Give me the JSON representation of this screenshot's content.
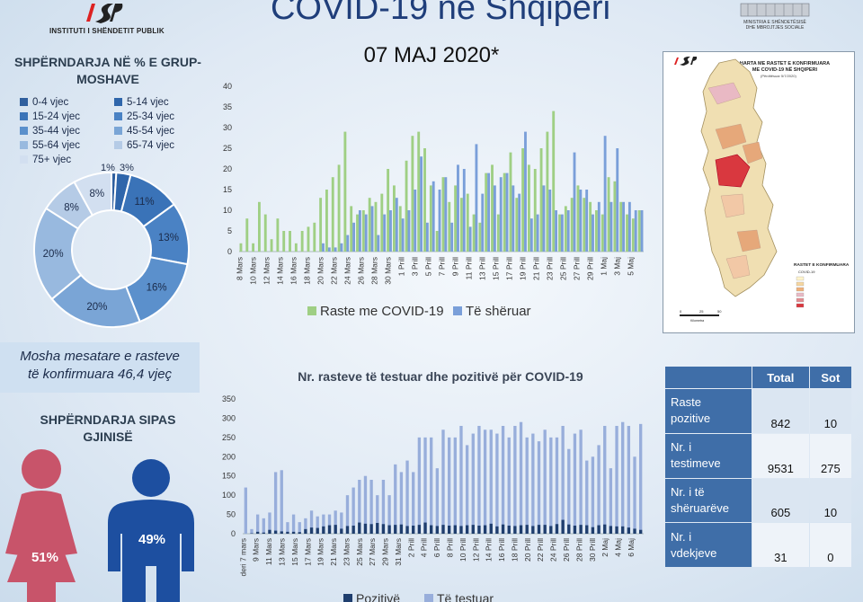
{
  "header": {
    "logo_text": "INSTITUTI I SHËNDETIT PUBLIK",
    "title": "COVID-19 në Shqipëri",
    "date": "07 MAJ 2020*",
    "ministry_line1": "MINISTRIA E SHËNDETËSISË",
    "ministry_line2": "DHE MBROJTJES SOCIALE"
  },
  "age": {
    "title": "SHPËRNDARJA NË % E GRUP-MOSHAVE",
    "legend": [
      {
        "label": "0-4 vjec",
        "color": "#2f5f9e"
      },
      {
        "label": "5-14 vjec",
        "color": "#2f66ab"
      },
      {
        "label": "15-24 vjec",
        "color": "#3a73b8"
      },
      {
        "label": "25-34 vjec",
        "color": "#4a82c4"
      },
      {
        "label": "35-44 vjec",
        "color": "#5b90cc"
      },
      {
        "label": "45-54 vjec",
        "color": "#7aa5d6"
      },
      {
        "label": "55-64 vjec",
        "color": "#98b9df"
      },
      {
        "label": "65-74 vjec",
        "color": "#b5cbe6"
      },
      {
        "label": "75+ vjec",
        "color": "#d2dff0"
      }
    ],
    "mean_line1": "Mosha mesatare e rasteve",
    "mean_line2": "të konfirmuara 46,4 vjeç"
  },
  "gender": {
    "title": "SHPËRNDARJA SIPAS GJINISË",
    "female_pct": "51%",
    "male_pct": "49%",
    "female_color": "#c8546a",
    "male_color": "#1d4fa0"
  },
  "table": {
    "headers": [
      "",
      "Total",
      "Sot"
    ],
    "rows": [
      {
        "label1": "Raste",
        "label2": "pozitive",
        "total": "842",
        "sot": "10"
      },
      {
        "label1": "Nr. i",
        "label2": "testimeve",
        "total": "9531",
        "sot": "275"
      },
      {
        "label1": "Nr. i të",
        "label2": "shëruarëve",
        "total": "605",
        "sot": "10"
      },
      {
        "label1": "Nr. i",
        "label2": "vdekjeve",
        "total": "31",
        "sot": "0"
      }
    ]
  },
  "map": {
    "title1": "HARTA ME RASTET E KONFIRMUARA",
    "title2": "ME COVID-19 NË SHQIPERI",
    "updated": "(Përditësuar 5/7/2020)",
    "legend_title": "RASTET E KONFIRMUARA",
    "legend_sub": "COVID-19",
    "scale": [
      "0",
      "25",
      "50"
    ],
    "scale_unit": "Kilometra"
  },
  "chart_data": [
    {
      "type": "pie",
      "categories": [
        "0-4 vjec",
        "5-14 vjec",
        "15-24 vjec",
        "25-34 vjec",
        "35-44 vjec",
        "45-54 vjec",
        "55-64 vjec",
        "65-74 vjec",
        "75+ vjec"
      ],
      "values": [
        1,
        3,
        11,
        13,
        16,
        20,
        20,
        8,
        8
      ],
      "labels": [
        "1%",
        "3%",
        "11%",
        "13%",
        "16%",
        "20%",
        "20%",
        "8%",
        "8%"
      ],
      "colors": [
        "#2f5f9e",
        "#2f66ab",
        "#3a73b8",
        "#4a82c4",
        "#5b90cc",
        "#7aa5d6",
        "#98b9df",
        "#b5cbe6",
        "#d2dff0"
      ],
      "donut": true
    },
    {
      "type": "bar",
      "title": "",
      "ylim": [
        0,
        40
      ],
      "yticks": [
        0,
        5,
        10,
        15,
        20,
        25,
        30,
        35,
        40
      ],
      "tick_labels": [
        "8 Mars",
        "10 Mars",
        "12 Mars",
        "14 Mars",
        "16 Mars",
        "18 Mars",
        "20 Mars",
        "22 Mars",
        "24 Mars",
        "26 Mars",
        "28 Mars",
        "30 Mars",
        "1 Prill",
        "3 Prill",
        "5 Prill",
        "7 Prill",
        "9 Prill",
        "11 Prill",
        "13 Prill",
        "15 Prill",
        "17 Prill",
        "19 Prill",
        "21 Prill",
        "23 Prill",
        "25 Prill",
        "27 Prill",
        "29 Prill",
        "1 Maj",
        "3 Maj",
        "5 Maj"
      ],
      "legend_position": "bottom",
      "series": [
        {
          "name": "Raste me COVID-19",
          "color": "#9fcf84",
          "values": [
            2,
            8,
            2,
            12,
            9,
            3,
            8,
            5,
            5,
            2,
            5,
            6,
            7,
            13,
            15,
            18,
            21,
            29,
            11,
            9,
            10,
            13,
            12,
            14,
            20,
            16,
            11,
            22,
            28,
            29,
            25,
            16,
            5,
            18,
            12,
            16,
            13,
            14,
            9,
            7,
            19,
            21,
            9,
            19,
            24,
            13,
            25,
            21,
            20,
            25,
            29,
            34,
            9,
            11,
            13,
            16,
            13,
            12,
            10,
            9,
            18,
            17,
            12,
            9,
            8,
            10
          ]
        },
        {
          "name": "Të shëruar",
          "color": "#7a9fd9",
          "values": [
            0,
            0,
            0,
            0,
            0,
            0,
            0,
            0,
            0,
            0,
            0,
            0,
            0,
            2,
            1,
            1,
            2,
            4,
            7,
            10,
            9,
            11,
            4,
            9,
            10,
            13,
            8,
            10,
            15,
            23,
            7,
            17,
            15,
            18,
            7,
            21,
            20,
            6,
            26,
            14,
            19,
            16,
            18,
            19,
            16,
            14,
            29,
            8,
            9,
            16,
            15,
            10,
            9,
            10,
            24,
            15,
            15,
            9,
            12,
            28,
            12,
            25,
            12,
            12,
            10,
            10
          ]
        }
      ]
    },
    {
      "type": "bar",
      "title": "Nr. rasteve të testuar dhe pozitivë për COVID-19",
      "ylim": [
        0,
        350
      ],
      "yticks": [
        0,
        50,
        100,
        150,
        200,
        250,
        300,
        350
      ],
      "tick_labels": [
        "deri 7 mars",
        "9 Mars",
        "11 Mars",
        "13 Mars",
        "15 Mars",
        "17 Mars",
        "19 Mars",
        "21 Mars",
        "23 Mars",
        "25 Mars",
        "27 Mars",
        "29 Mars",
        "31 Mars",
        "2 Prill",
        "4 Prill",
        "6 Prill",
        "8 Prill",
        "10 Prill",
        "12 Prill",
        "14 Prill",
        "16 Prill",
        "18 Prill",
        "20 Prill",
        "22 Prill",
        "24 Prill",
        "26 Prill",
        "28 Prill",
        "30 Prill",
        "2 Maj",
        "4 Maj",
        "6 Maj"
      ],
      "legend_position": "bottom",
      "series": [
        {
          "name": "Pozitivë",
          "color": "#1f3e6e",
          "values": [
            0,
            1,
            5,
            3,
            10,
            8,
            6,
            5,
            5,
            4,
            12,
            16,
            15,
            19,
            22,
            23,
            13,
            20,
            21,
            29,
            26,
            25,
            28,
            25,
            22,
            23,
            24,
            20,
            21,
            23,
            29,
            22,
            20,
            23,
            21,
            22,
            20,
            22,
            23,
            21,
            22,
            26,
            19,
            24,
            21,
            20,
            22,
            23,
            20,
            23,
            23,
            20,
            25,
            36,
            24,
            21,
            23,
            22,
            17,
            22,
            24,
            20,
            19,
            19,
            16,
            13,
            10
          ]
        },
        {
          "name": "Të testuar",
          "color": "#98aedb",
          "values": [
            120,
            12,
            50,
            40,
            55,
            160,
            165,
            30,
            50,
            30,
            40,
            60,
            45,
            50,
            50,
            60,
            55,
            100,
            120,
            140,
            150,
            140,
            100,
            140,
            100,
            180,
            160,
            190,
            160,
            250,
            250,
            250,
            170,
            270,
            250,
            250,
            280,
            230,
            260,
            280,
            270,
            270,
            260,
            280,
            250,
            280,
            290,
            250,
            260,
            240,
            270,
            250,
            250,
            280,
            220,
            260,
            270,
            190,
            200,
            230,
            280,
            170,
            280,
            290,
            280,
            200,
            285
          ]
        }
      ]
    }
  ]
}
